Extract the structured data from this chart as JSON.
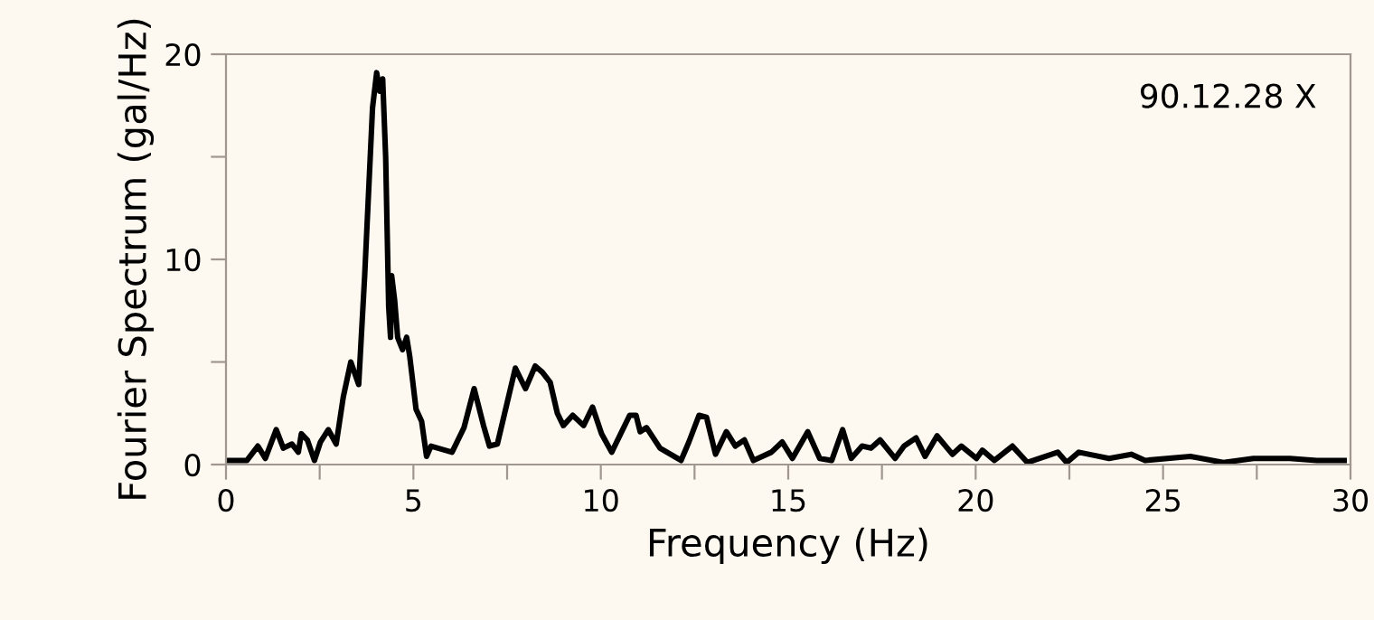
{
  "chart_data": {
    "type": "line",
    "xlabel": "Frequency (Hz)",
    "ylabel": "Fourier Spectrum (gal/Hz)",
    "annotations": [
      "90.12.28 X"
    ],
    "xlim": [
      0,
      30
    ],
    "ylim": [
      0,
      20
    ],
    "xticks": [
      0,
      {
        "value": 2.5,
        "label": null
      },
      5,
      {
        "value": 7.5,
        "label": null
      },
      10,
      {
        "value": 12.5,
        "label": null
      },
      15,
      {
        "value": 17.5,
        "label": null
      },
      20,
      {
        "value": 22.5,
        "label": null
      },
      25,
      {
        "value": 27.5,
        "label": null
      },
      30
    ],
    "yticks": [
      0,
      {
        "value": 5,
        "label": null
      },
      10,
      {
        "value": 15,
        "label": null
      },
      20
    ],
    "grid": false,
    "legend": false,
    "marker": "none",
    "line_style": "solid",
    "series": [
      {
        "color": "#000000",
        "x": [
          0,
          0.56,
          0.85,
          1.05,
          1.34,
          1.53,
          1.76,
          1.93,
          2.01,
          2.17,
          2.36,
          2.52,
          2.73,
          2.94,
          3.13,
          3.33,
          3.54,
          3.7,
          3.91,
          4.02,
          4.1,
          4.18,
          4.26,
          4.34,
          4.39,
          4.42,
          4.5,
          4.58,
          4.71,
          4.82,
          4.9,
          5.07,
          5.22,
          5.35,
          5.47,
          6.03,
          6.35,
          6.62,
          6.87,
          7.03,
          7.24,
          7.72,
          7.99,
          8.25,
          8.44,
          8.65,
          8.84,
          9.0,
          9.25,
          9.54,
          9.78,
          10.02,
          10.29,
          10.77,
          10.94,
          11.05,
          11.22,
          11.58,
          12.14,
          12.35,
          12.62,
          12.82,
          13.06,
          13.35,
          13.59,
          13.83,
          14.07,
          14.55,
          14.84,
          15.11,
          15.52,
          15.84,
          16.16,
          16.45,
          16.68,
          16.97,
          17.21,
          17.45,
          17.85,
          18.09,
          18.41,
          18.65,
          18.97,
          19.38,
          19.62,
          20.02,
          20.18,
          20.5,
          20.98,
          21.38,
          22.19,
          22.43,
          22.75,
          23.56,
          24.15,
          24.52,
          25.73,
          26.61,
          27.41,
          28.38,
          29.1,
          29.83
        ],
        "values": [
          0.2,
          0.2,
          0.9,
          0.3,
          1.7,
          0.8,
          1.0,
          0.6,
          1.5,
          1.2,
          0.2,
          1.1,
          1.7,
          1.0,
          3.3,
          5.0,
          3.9,
          9.2,
          17.4,
          19.1,
          18.2,
          18.8,
          15.0,
          7.7,
          6.2,
          9.2,
          8.0,
          6.2,
          5.6,
          6.2,
          5.3,
          2.7,
          2.1,
          0.4,
          0.9,
          0.6,
          1.8,
          3.7,
          1.9,
          0.9,
          1.0,
          4.7,
          3.7,
          4.8,
          4.5,
          4.0,
          2.5,
          1.9,
          2.4,
          1.9,
          2.8,
          1.5,
          0.6,
          2.4,
          2.4,
          1.6,
          1.8,
          0.8,
          0.2,
          1.1,
          2.4,
          2.3,
          0.5,
          1.6,
          0.9,
          1.2,
          0.2,
          0.6,
          1.1,
          0.3,
          1.6,
          0.3,
          0.2,
          1.7,
          0.3,
          0.9,
          0.8,
          1.2,
          0.3,
          0.9,
          1.3,
          0.4,
          1.4,
          0.5,
          0.9,
          0.3,
          0.7,
          0.2,
          0.9,
          0.1,
          0.6,
          0.1,
          0.6,
          0.3,
          0.5,
          0.2,
          0.4,
          0.1,
          0.3,
          0.3,
          0.2,
          0.2
        ]
      }
    ]
  }
}
